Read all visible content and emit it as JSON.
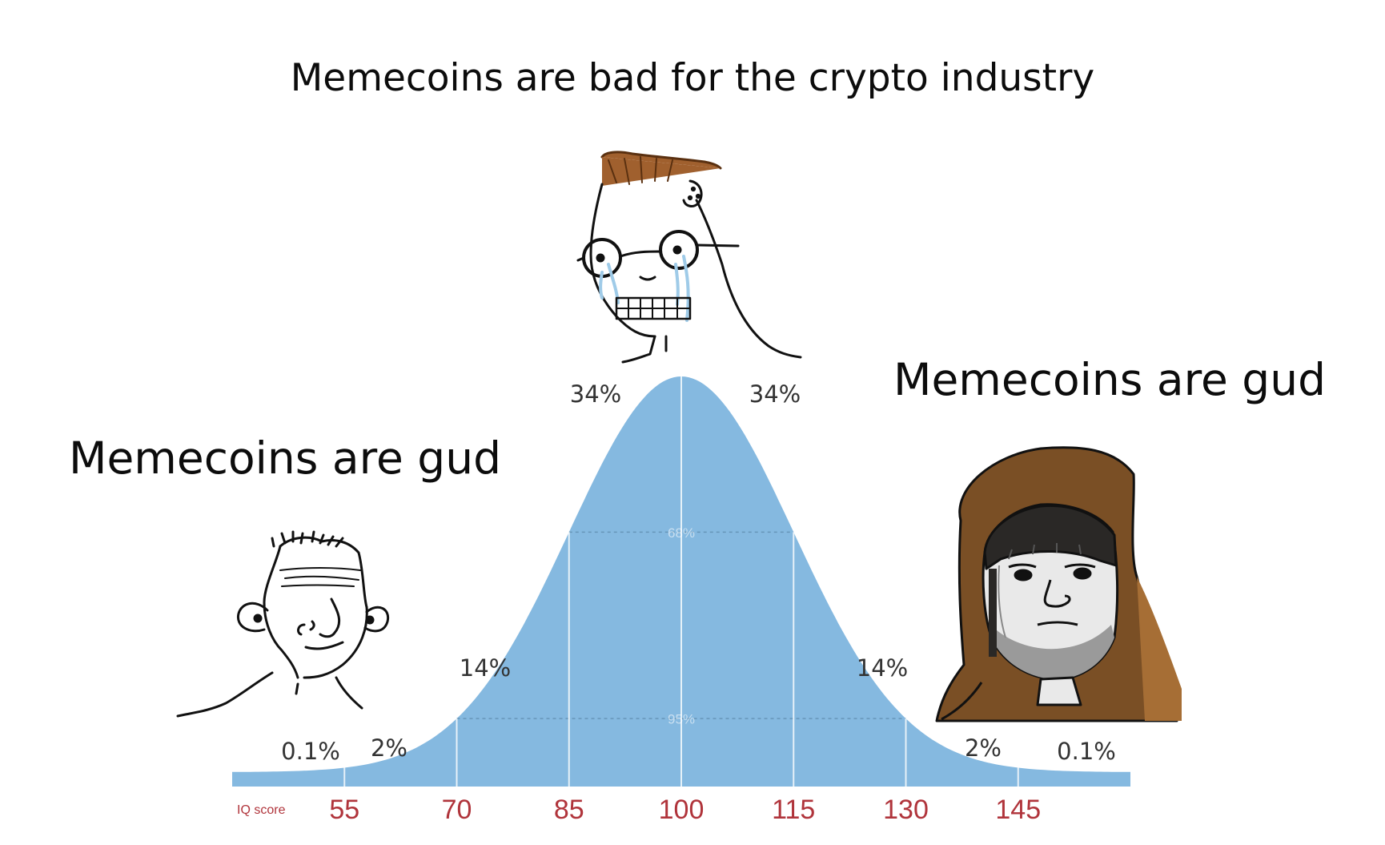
{
  "title": "Memecoins are bad for the crypto industry",
  "left_caption": "Memecoins are gud",
  "right_caption": "Memecoins are gud",
  "colors": {
    "curve": "#85b9e0",
    "tick_text": "#b0343b",
    "divider": "#ffffff"
  },
  "icons": [
    "simpleton-wojak-icon",
    "crying-nerd-wojak-icon",
    "hooded-monk-wojak-icon"
  ],
  "chart_data": {
    "type": "area",
    "axis_label": "IQ score",
    "ticks": [
      55,
      70,
      85,
      100,
      115,
      130,
      145
    ],
    "mean": 100,
    "sd": 15,
    "segments": [
      {
        "label": "0.1%",
        "from": 40,
        "to": 55
      },
      {
        "label": "2%",
        "from": 55,
        "to": 70
      },
      {
        "label": "14%",
        "from": 70,
        "to": 85
      },
      {
        "label": "34%",
        "from": 85,
        "to": 100
      },
      {
        "label": "34%",
        "from": 100,
        "to": 115
      },
      {
        "label": "14%",
        "from": 115,
        "to": 130
      },
      {
        "label": "2%",
        "from": 130,
        "to": 145
      },
      {
        "label": "0.1%",
        "from": 145,
        "to": 160
      }
    ],
    "ranges": [
      {
        "label": "68%",
        "from": 85,
        "to": 115
      },
      {
        "label": "95%",
        "from": 70,
        "to": 130
      }
    ]
  }
}
